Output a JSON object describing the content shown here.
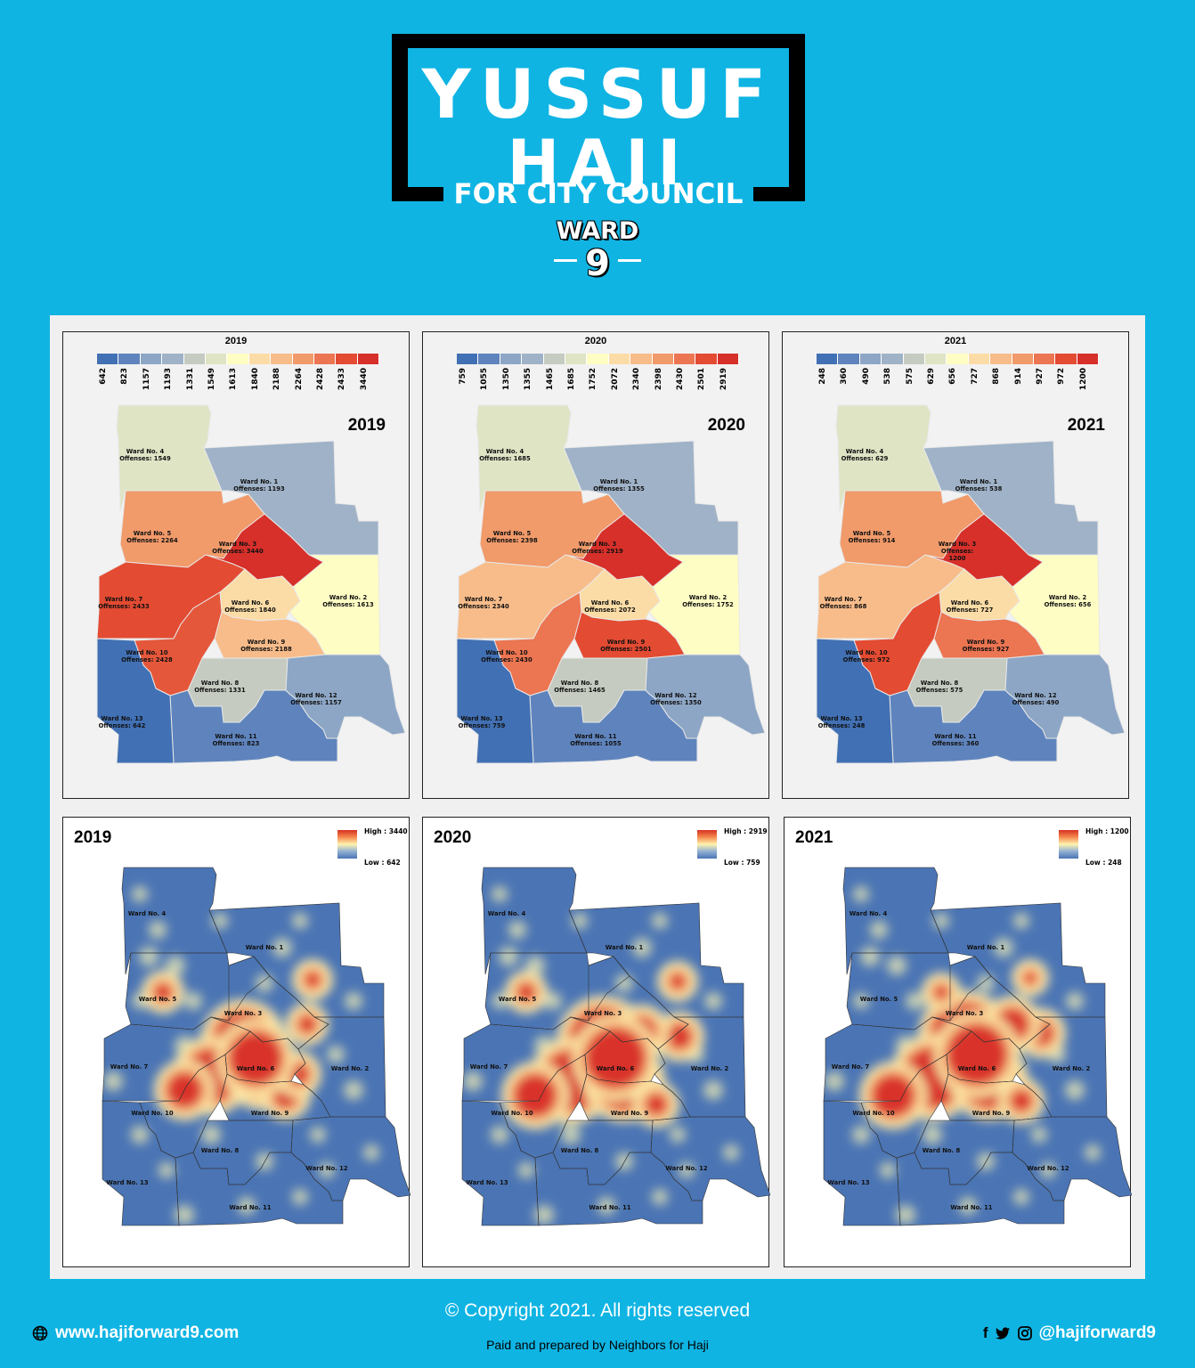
{
  "header": {
    "first_name": "YUSSUF",
    "last_name": "HAJI",
    "subtitle": "FOR CITY COUNCIL",
    "ward_label": "WARD",
    "ward_number": "9"
  },
  "choropleths": [
    {
      "scale_title": "2019",
      "year_label": "2019",
      "class_breaks": [
        "642",
        "823",
        "1157",
        "1193",
        "1331",
        "1549",
        "1613",
        "1840",
        "2188",
        "2264",
        "2428",
        "2433",
        "3440"
      ],
      "wards": [
        {
          "name": "Ward No. 1",
          "offenses": "Offenses: 1193",
          "color": "#9fb2c7"
        },
        {
          "name": "Ward No. 2",
          "offenses": "Offenses: 1613",
          "color": "#fefdc4"
        },
        {
          "name": "Ward No. 3",
          "offenses": "Offenses: 3440",
          "color": "#d7302a"
        },
        {
          "name": "Ward No. 4",
          "offenses": "Offenses: 1549",
          "color": "#dfe4c5"
        },
        {
          "name": "Ward No. 5",
          "offenses": "Offenses: 2264",
          "color": "#f19a6a"
        },
        {
          "name": "Ward No. 6",
          "offenses": "Offenses: 1840",
          "color": "#fcdca6"
        },
        {
          "name": "Ward No. 7",
          "offenses": "Offenses: 2433",
          "color": "#e34b32"
        },
        {
          "name": "Ward No. 8",
          "offenses": "Offenses: 1331",
          "color": "#c5cbc0"
        },
        {
          "name": "Ward No. 9",
          "offenses": "Offenses: 2188",
          "color": "#f8bc8a"
        },
        {
          "name": "Ward No. 10",
          "offenses": "Offenses: 2428",
          "color": "#e5573b"
        },
        {
          "name": "Ward No. 11",
          "offenses": "Offenses: 823",
          "color": "#5f84bd"
        },
        {
          "name": "Ward No. 12",
          "offenses": "Offenses: 1157",
          "color": "#8da6c5"
        },
        {
          "name": "Ward No. 13",
          "offenses": "Offenses: 642",
          "color": "#4170b4"
        }
      ]
    },
    {
      "scale_title": "2020",
      "year_label": "2020",
      "class_breaks": [
        "759",
        "1055",
        "1350",
        "1355",
        "1465",
        "1685",
        "1752",
        "2072",
        "2340",
        "2398",
        "2430",
        "2501",
        "2919"
      ],
      "wards": [
        {
          "name": "Ward No. 1",
          "offenses": "Offenses: 1355",
          "color": "#9fb2c7"
        },
        {
          "name": "Ward No. 2",
          "offenses": "Offenses: 1752",
          "color": "#fefdc4"
        },
        {
          "name": "Ward No. 3",
          "offenses": "Offenses: 2919",
          "color": "#d7302a"
        },
        {
          "name": "Ward No. 4",
          "offenses": "Offenses: 1685",
          "color": "#dfe4c5"
        },
        {
          "name": "Ward No. 5",
          "offenses": "Offenses: 2398",
          "color": "#f19a6a"
        },
        {
          "name": "Ward No. 6",
          "offenses": "Offenses: 2072",
          "color": "#fcdca6"
        },
        {
          "name": "Ward No. 7",
          "offenses": "Offenses: 2340",
          "color": "#f8bc8a"
        },
        {
          "name": "Ward No. 8",
          "offenses": "Offenses: 1465",
          "color": "#c5cbc0"
        },
        {
          "name": "Ward No. 9",
          "offenses": "Offenses: 2501",
          "color": "#e34b32"
        },
        {
          "name": "Ward No. 10",
          "offenses": "Offenses: 2430",
          "color": "#ec7552"
        },
        {
          "name": "Ward No. 11",
          "offenses": "Offenses: 1055",
          "color": "#5f84bd"
        },
        {
          "name": "Ward No. 12",
          "offenses": "Offenses: 1350",
          "color": "#8da6c5"
        },
        {
          "name": "Ward No. 13",
          "offenses": "Offenses: 759",
          "color": "#4170b4"
        }
      ]
    },
    {
      "scale_title": "2021",
      "year_label": "2021",
      "class_breaks": [
        "248",
        "360",
        "490",
        "538",
        "575",
        "629",
        "656",
        "727",
        "868",
        "914",
        "927",
        "972",
        "1200"
      ],
      "wards": [
        {
          "name": "Ward No. 1",
          "offenses": "Offenses: 538",
          "color": "#9fb2c7"
        },
        {
          "name": "Ward No. 2",
          "offenses": "Offenses: 656",
          "color": "#fefdc4"
        },
        {
          "name": "Ward No. 3",
          "offenses": "Offenses:",
          "offenses2": "1200",
          "color": "#d7302a"
        },
        {
          "name": "Ward No. 4",
          "offenses": "Offenses: 629",
          "color": "#dfe4c5"
        },
        {
          "name": "Ward No. 5",
          "offenses": "Offenses: 914",
          "color": "#f19a6a"
        },
        {
          "name": "Ward No. 6",
          "offenses": "Offenses: 727",
          "color": "#fcdca6"
        },
        {
          "name": "Ward No. 7",
          "offenses": "Offenses: 868",
          "color": "#f8bc8a"
        },
        {
          "name": "Ward No. 8",
          "offenses": "Offenses: 575",
          "color": "#c5cbc0"
        },
        {
          "name": "Ward No. 9",
          "offenses": "Offenses: 927",
          "color": "#ec7552"
        },
        {
          "name": "Ward No. 10",
          "offenses": "Offenses: 972",
          "color": "#e34b32"
        },
        {
          "name": "Ward No. 11",
          "offenses": "Offenses: 360",
          "color": "#5f84bd"
        },
        {
          "name": "Ward No. 12",
          "offenses": "Offenses: 490",
          "color": "#8da6c5"
        },
        {
          "name": "Ward No. 13",
          "offenses": "Offenses: 248",
          "color": "#4170b4"
        }
      ]
    }
  ],
  "scale_colors": [
    "#4170b4",
    "#5f84bd",
    "#8da6c5",
    "#9fb2c7",
    "#c5cbc0",
    "#dfe4c5",
    "#fefdc4",
    "#fcdca6",
    "#f8bc8a",
    "#f19a6a",
    "#ec7552",
    "#e34b32",
    "#d7302a"
  ],
  "heatmaps": [
    {
      "year_label": "2019",
      "high": "High : 3440",
      "low": "Low : 642"
    },
    {
      "year_label": "2020",
      "high": "High : 2919",
      "low": "Low : 759"
    },
    {
      "year_label": "2021",
      "high": "High : 1200",
      "low": "Low : 248"
    }
  ],
  "heat_ward_labels": [
    "Ward No. 1",
    "Ward No. 2",
    "Ward No. 3",
    "Ward No. 4",
    "Ward No. 5",
    "Ward No. 6",
    "Ward No. 7",
    "Ward No. 8",
    "Ward No. 9",
    "Ward No. 10",
    "Ward No. 11",
    "Ward No. 12",
    "Ward No. 13"
  ],
  "footer": {
    "copyright": "© Copyright 2021. All rights reserved",
    "website": "www.hajiforward9.com",
    "paid_by": "Paid and prepared by Neighbors for Haji",
    "handle": "@hajiforward9",
    "globe_icon": "globe-icon",
    "social_icons": [
      "facebook-icon",
      "twitter-icon",
      "instagram-icon"
    ]
  }
}
